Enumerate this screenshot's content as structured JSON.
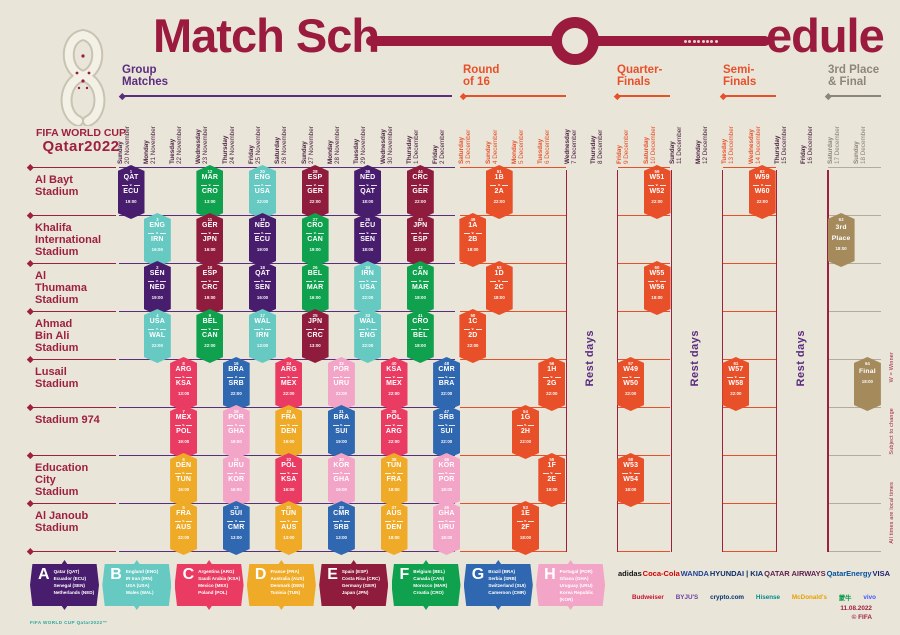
{
  "title": {
    "left": "Match Sch",
    "right": "edule"
  },
  "logo": {
    "line1": "FIFA WORLD CUP",
    "line2": "Qatar2022"
  },
  "vs_label": "v.",
  "rest_label": "Rest days",
  "sections": [
    {
      "id": "group",
      "lines": [
        "Group",
        "Matches"
      ],
      "tone": "purple"
    },
    {
      "id": "r16",
      "lines": [
        "Round",
        "of 16"
      ],
      "tone": "orange"
    },
    {
      "id": "qf",
      "lines": [
        "Quarter-",
        "Finals"
      ],
      "tone": "orange"
    },
    {
      "id": "sf",
      "lines": [
        "Semi-",
        "Finals"
      ],
      "tone": "orange"
    },
    {
      "id": "final",
      "lines": [
        "3rd Place",
        "& Final"
      ],
      "tone": "gray"
    }
  ],
  "days": [
    {
      "w": "Sunday",
      "d": "20 November",
      "tone": "dark"
    },
    {
      "w": "Monday",
      "d": "21 November",
      "tone": "dark"
    },
    {
      "w": "Tuesday",
      "d": "22 November",
      "tone": "dark"
    },
    {
      "w": "Wednesday",
      "d": "23 November",
      "tone": "dark"
    },
    {
      "w": "Thursday",
      "d": "24 November",
      "tone": "dark"
    },
    {
      "w": "Friday",
      "d": "25 November",
      "tone": "dark"
    },
    {
      "w": "Saturday",
      "d": "26 November",
      "tone": "dark"
    },
    {
      "w": "Sunday",
      "d": "27 November",
      "tone": "dark"
    },
    {
      "w": "Monday",
      "d": "28 November",
      "tone": "dark"
    },
    {
      "w": "Tuesday",
      "d": "29 November",
      "tone": "dark"
    },
    {
      "w": "Wednesday",
      "d": "30 November",
      "tone": "dark"
    },
    {
      "w": "Thursday",
      "d": "1 December",
      "tone": "dark"
    },
    {
      "w": "Friday",
      "d": "2 December",
      "tone": "dark"
    },
    {
      "w": "Saturday",
      "d": "3 December",
      "tone": "orange"
    },
    {
      "w": "Sunday",
      "d": "4 December",
      "tone": "orange"
    },
    {
      "w": "Monday",
      "d": "5 December",
      "tone": "orange"
    },
    {
      "w": "Tuesday",
      "d": "6 December",
      "tone": "orange"
    },
    {
      "w": "Wednesday",
      "d": "7 December",
      "tone": "dark"
    },
    {
      "w": "Thursday",
      "d": "8 December",
      "tone": "dark"
    },
    {
      "w": "Friday",
      "d": "9 December",
      "tone": "orange"
    },
    {
      "w": "Saturday",
      "d": "10 December",
      "tone": "orange"
    },
    {
      "w": "Sunday",
      "d": "11 December",
      "tone": "dark"
    },
    {
      "w": "Monday",
      "d": "12 December",
      "tone": "dark"
    },
    {
      "w": "Tuesday",
      "d": "13 December",
      "tone": "orange"
    },
    {
      "w": "Wednesday",
      "d": "14 December",
      "tone": "orange"
    },
    {
      "w": "Thursday",
      "d": "15 December",
      "tone": "dark"
    },
    {
      "w": "Friday",
      "d": "16 December",
      "tone": "dark"
    },
    {
      "w": "Saturday",
      "d": "17 December",
      "tone": "gray"
    },
    {
      "w": "Sunday",
      "d": "18 December",
      "tone": "gray"
    }
  ],
  "stadiums": [
    {
      "name": [
        "Al Bayt",
        "Stadium"
      ],
      "matches": [
        {
          "d": 0,
          "n": 1,
          "a": "QAT",
          "b": "ECU",
          "t": "19:00",
          "g": "A"
        },
        {
          "d": 3,
          "n": 12,
          "a": "MAR",
          "b": "CRO",
          "t": "13:00",
          "g": "F"
        },
        {
          "d": 5,
          "n": 20,
          "a": "ENG",
          "b": "USA",
          "t": "22:00",
          "g": "B"
        },
        {
          "d": 7,
          "n": 28,
          "a": "ESP",
          "b": "GER",
          "t": "22:00",
          "g": "E"
        },
        {
          "d": 9,
          "n": 36,
          "a": "NED",
          "b": "QAT",
          "t": "18:00",
          "g": "A"
        },
        {
          "d": 11,
          "n": 44,
          "a": "CRC",
          "b": "GER",
          "t": "22:00",
          "g": "E"
        },
        {
          "d": 14,
          "n": 51,
          "a": "1B",
          "b": "2A",
          "t": "22:00",
          "g": "KO"
        },
        {
          "d": 20,
          "n": 59,
          "a": "W51",
          "b": "W52",
          "t": "22:00",
          "g": "KO"
        },
        {
          "d": 24,
          "n": 62,
          "a": "W59",
          "b": "W60",
          "t": "22:00",
          "g": "KO"
        }
      ]
    },
    {
      "name": [
        "Khalifa",
        "International",
        "Stadium"
      ],
      "matches": [
        {
          "d": 1,
          "n": 3,
          "a": "ENG",
          "b": "IRN",
          "t": "16:00",
          "g": "B"
        },
        {
          "d": 3,
          "n": 11,
          "a": "GER",
          "b": "JPN",
          "t": "16:00",
          "g": "E"
        },
        {
          "d": 5,
          "n": 19,
          "a": "NED",
          "b": "ECU",
          "t": "19:00",
          "g": "A"
        },
        {
          "d": 7,
          "n": 27,
          "a": "CRO",
          "b": "CAN",
          "t": "19:00",
          "g": "F"
        },
        {
          "d": 9,
          "n": 35,
          "a": "ECU",
          "b": "SEN",
          "t": "18:00",
          "g": "A"
        },
        {
          "d": 11,
          "n": 43,
          "a": "JPN",
          "b": "ESP",
          "t": "22:00",
          "g": "E"
        },
        {
          "d": 13,
          "n": 49,
          "a": "1A",
          "b": "2B",
          "t": "18:00",
          "g": "KO"
        },
        {
          "d": 27,
          "n": 63,
          "a": "3rd",
          "b": "Place",
          "t": "18:00",
          "g": "TAN",
          "single": true
        }
      ]
    },
    {
      "name": [
        "Al",
        "Thumama",
        "Stadium"
      ],
      "matches": [
        {
          "d": 1,
          "n": 2,
          "a": "SEN",
          "b": "NED",
          "t": "19:00",
          "g": "A"
        },
        {
          "d": 3,
          "n": 10,
          "a": "ESP",
          "b": "CRC",
          "t": "19:00",
          "g": "E"
        },
        {
          "d": 5,
          "n": 18,
          "a": "QAT",
          "b": "SEN",
          "t": "16:00",
          "g": "A"
        },
        {
          "d": 7,
          "n": 26,
          "a": "BEL",
          "b": "MAR",
          "t": "16:00",
          "g": "F"
        },
        {
          "d": 9,
          "n": 34,
          "a": "IRN",
          "b": "USA",
          "t": "22:00",
          "g": "B"
        },
        {
          "d": 11,
          "n": 42,
          "a": "CAN",
          "b": "MAR",
          "t": "18:00",
          "g": "F"
        },
        {
          "d": 14,
          "n": 52,
          "a": "1D",
          "b": "2C",
          "t": "18:00",
          "g": "KO"
        },
        {
          "d": 20,
          "n": 60,
          "a": "W55",
          "b": "W56",
          "t": "18:00",
          "g": "KO"
        }
      ]
    },
    {
      "name": [
        "Ahmad",
        "Bin Ali",
        "Stadium"
      ],
      "matches": [
        {
          "d": 1,
          "n": 4,
          "a": "USA",
          "b": "WAL",
          "t": "22:00",
          "g": "B"
        },
        {
          "d": 3,
          "n": 9,
          "a": "BEL",
          "b": "CAN",
          "t": "22:00",
          "g": "F"
        },
        {
          "d": 5,
          "n": 17,
          "a": "WAL",
          "b": "IRN",
          "t": "13:00",
          "g": "B"
        },
        {
          "d": 7,
          "n": 25,
          "a": "JPN",
          "b": "CRC",
          "t": "13:00",
          "g": "E"
        },
        {
          "d": 9,
          "n": 33,
          "a": "WAL",
          "b": "ENG",
          "t": "22:00",
          "g": "B"
        },
        {
          "d": 11,
          "n": 41,
          "a": "CRO",
          "b": "BEL",
          "t": "18:00",
          "g": "F"
        },
        {
          "d": 13,
          "n": 50,
          "a": "1C",
          "b": "2D",
          "t": "22:00",
          "g": "KO"
        }
      ]
    },
    {
      "name": [
        "Lusail",
        "Stadium"
      ],
      "matches": [
        {
          "d": 2,
          "n": 8,
          "a": "ARG",
          "b": "KSA",
          "t": "13:00",
          "g": "C"
        },
        {
          "d": 4,
          "n": 16,
          "a": "BRA",
          "b": "SRB",
          "t": "22:00",
          "g": "G"
        },
        {
          "d": 6,
          "n": 24,
          "a": "ARG",
          "b": "MEX",
          "t": "22:00",
          "g": "C"
        },
        {
          "d": 8,
          "n": 32,
          "a": "POR",
          "b": "URU",
          "t": "22:00",
          "g": "H"
        },
        {
          "d": 10,
          "n": 40,
          "a": "KSA",
          "b": "MEX",
          "t": "22:00",
          "g": "C"
        },
        {
          "d": 12,
          "n": 48,
          "a": "CMR",
          "b": "BRA",
          "t": "22:00",
          "g": "G"
        },
        {
          "d": 16,
          "n": 56,
          "a": "1H",
          "b": "2G",
          "t": "22:00",
          "g": "KO"
        },
        {
          "d": 19,
          "n": 57,
          "a": "W49",
          "b": "W50",
          "t": "22:00",
          "g": "KO"
        },
        {
          "d": 23,
          "n": 61,
          "a": "W57",
          "b": "W58",
          "t": "22:00",
          "g": "KO"
        },
        {
          "d": 28,
          "n": 64,
          "a": "Final",
          "b": "",
          "t": "18:00",
          "g": "TAN",
          "single": true
        }
      ]
    },
    {
      "name": [
        "Stadium 974"
      ],
      "matches": [
        {
          "d": 2,
          "n": 7,
          "a": "MEX",
          "b": "POL",
          "t": "19:00",
          "g": "C"
        },
        {
          "d": 4,
          "n": 15,
          "a": "POR",
          "b": "GHA",
          "t": "19:00",
          "g": "H"
        },
        {
          "d": 6,
          "n": 23,
          "a": "FRA",
          "b": "DEN",
          "t": "19:00",
          "g": "D"
        },
        {
          "d": 8,
          "n": 31,
          "a": "BRA",
          "b": "SUI",
          "t": "19:00",
          "g": "G"
        },
        {
          "d": 10,
          "n": 39,
          "a": "POL",
          "b": "ARG",
          "t": "22:00",
          "g": "C"
        },
        {
          "d": 12,
          "n": 47,
          "a": "SRB",
          "b": "SUI",
          "t": "22:00",
          "g": "G"
        },
        {
          "d": 15,
          "n": 54,
          "a": "1G",
          "b": "2H",
          "t": "22:00",
          "g": "KO"
        }
      ]
    },
    {
      "name": [
        "Education",
        "City",
        "Stadium"
      ],
      "matches": [
        {
          "d": 2,
          "n": 6,
          "a": "DEN",
          "b": "TUN",
          "t": "16:00",
          "g": "D"
        },
        {
          "d": 4,
          "n": 14,
          "a": "URU",
          "b": "KOR",
          "t": "16:00",
          "g": "H"
        },
        {
          "d": 6,
          "n": 22,
          "a": "POL",
          "b": "KSA",
          "t": "16:00",
          "g": "C"
        },
        {
          "d": 8,
          "n": 30,
          "a": "KOR",
          "b": "GHA",
          "t": "16:00",
          "g": "H"
        },
        {
          "d": 10,
          "n": 38,
          "a": "TUN",
          "b": "FRA",
          "t": "18:00",
          "g": "D"
        },
        {
          "d": 12,
          "n": 46,
          "a": "KOR",
          "b": "POR",
          "t": "18:00",
          "g": "H"
        },
        {
          "d": 16,
          "n": 55,
          "a": "1F",
          "b": "2E",
          "t": "18:00",
          "g": "KO"
        },
        {
          "d": 19,
          "n": 58,
          "a": "W53",
          "b": "W54",
          "t": "18:00",
          "g": "KO"
        }
      ]
    },
    {
      "name": [
        "Al Janoub",
        "Stadium"
      ],
      "matches": [
        {
          "d": 2,
          "n": 5,
          "a": "FRA",
          "b": "AUS",
          "t": "22:00",
          "g": "D"
        },
        {
          "d": 4,
          "n": 13,
          "a": "SUI",
          "b": "CMR",
          "t": "13:00",
          "g": "G"
        },
        {
          "d": 6,
          "n": 21,
          "a": "TUN",
          "b": "AUS",
          "t": "13:00",
          "g": "D"
        },
        {
          "d": 8,
          "n": 29,
          "a": "CMR",
          "b": "SRB",
          "t": "13:00",
          "g": "G"
        },
        {
          "d": 10,
          "n": 37,
          "a": "AUS",
          "b": "DEN",
          "t": "18:00",
          "g": "D"
        },
        {
          "d": 12,
          "n": 45,
          "a": "GHA",
          "b": "URU",
          "t": "18:00",
          "g": "H"
        },
        {
          "d": 15,
          "n": 53,
          "a": "1E",
          "b": "2F",
          "t": "18:00",
          "g": "KO"
        }
      ]
    }
  ],
  "groups_legend": [
    {
      "letter": "A",
      "teams": [
        "Qatar (QAT)",
        "Ecuador (ECU)",
        "Senegal (SEN)",
        "Netherlands (NED)"
      ]
    },
    {
      "letter": "B",
      "teams": [
        "England (ENG)",
        "IR Iran (IRN)",
        "USA (USA)",
        "Wales (WAL)"
      ]
    },
    {
      "letter": "C",
      "teams": [
        "Argentina (ARG)",
        "Saudi Arabia (KSA)",
        "Mexico (MEX)",
        "Poland (POL)"
      ]
    },
    {
      "letter": "D",
      "teams": [
        "France (FRA)",
        "Australia (AUS)",
        "Denmark (DEN)",
        "Tunisia (TUN)"
      ]
    },
    {
      "letter": "E",
      "teams": [
        "Spain (ESP)",
        "Costa Rica (CRC)",
        "Germany (GER)",
        "Japan (JPN)"
      ]
    },
    {
      "letter": "F",
      "teams": [
        "Belgium (BEL)",
        "Canada (CAN)",
        "Morocco (MAR)",
        "Croatia (CRO)"
      ]
    },
    {
      "letter": "G",
      "teams": [
        "Brazil (BRA)",
        "Serbia (SRB)",
        "Switzerland (SUI)",
        "Cameroon (CMR)"
      ]
    },
    {
      "letter": "H",
      "teams": [
        "Portugal (POR)",
        "Ghana (GHA)",
        "Uruguay (URU)",
        "Korea Republic (KOR)"
      ]
    }
  ],
  "notes": [
    "W = Winner",
    "Subject to change",
    "All times are local times"
  ],
  "footer": {
    "date": "11.08.2022",
    "copyright": "© FIFA",
    "wordmark": "FIFA WORLD CUP Qatar2022™"
  },
  "sponsors": {
    "row1": [
      "adidas",
      "Coca-Cola",
      "WANDA",
      "HYUNDAI | KIA",
      "QATAR AIRWAYS",
      "QatarEnergy",
      "VISA"
    ],
    "row2": [
      "Budweiser",
      "BYJU'S",
      "crypto.com",
      "Hisense",
      "McDonald's",
      "蒙牛",
      "vivo"
    ]
  },
  "colors": {
    "bg": "#e9e5d9",
    "maroon": "#9b1b3e",
    "label": "#9e2041",
    "purple": "#5b2d7e",
    "orange": "#e8502a",
    "gray_text": "#8d8579",
    "gray_line": "#b3ab9c",
    "dark_date": "#4e2342",
    "tan": "#a58a5c",
    "groups": {
      "A": "#481d6d",
      "B": "#66c9c2",
      "C": "#ea3c63",
      "D": "#efab27",
      "E": "#8f1c3c",
      "F": "#0fa14d",
      "G": "#2f67b1",
      "H": "#f3a5c8",
      "KO": "#e8502a",
      "TAN": "#a58a5c"
    },
    "sponsor_colors": {
      "adidas": "#111111",
      "Coca-Cola": "#d40000",
      "WANDA": "#20409a",
      "HYUNDAI | KIA": "#0f2d6b",
      "QATAR AIRWAYS": "#5c1f4f",
      "QatarEnergy": "#00539f",
      "VISA": "#1a1f71",
      "Budweiser": "#c8102e",
      "BYJU'S": "#6b3fa0",
      "crypto.com": "#03316c",
      "Hisense": "#008c8c",
      "McDonald's": "#e8a000",
      "蒙牛": "#009949",
      "vivo": "#4157ff"
    }
  }
}
